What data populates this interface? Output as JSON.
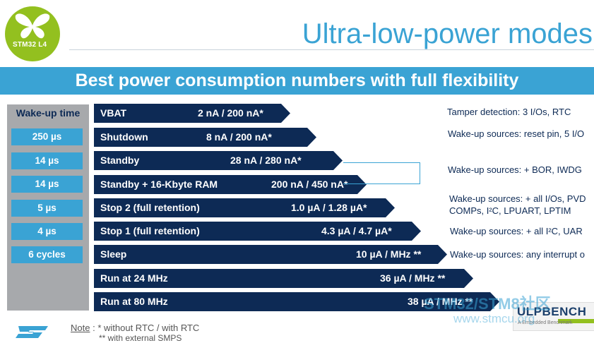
{
  "logo": {
    "text": "STM32 L4"
  },
  "title": "Ultra-low-power modes",
  "banner": "Best power consumption numbers with full flexibility",
  "wakeup": {
    "header": "Wake-up time",
    "cells": [
      "250 µs",
      "14 µs",
      "14 µs",
      "5 µs",
      "4 µs",
      "6 cycles"
    ]
  },
  "modes": [
    {
      "label": "VBAT",
      "value": "2 nA / 200 nA*"
    },
    {
      "label": "Shutdown",
      "value": "8 nA / 200 nA*"
    },
    {
      "label": "Standby",
      "value": "28 nA / 280 nA*"
    },
    {
      "label": "Standby + 16-Kbyte RAM",
      "value": "200 nA / 450 nA*"
    },
    {
      "label": "Stop 2 (full retention)",
      "value": "1.0 µA / 1.28 µA*"
    },
    {
      "label": "Stop 1 (full retention)",
      "value": "4.3 µA / 4.7 µA*"
    },
    {
      "label": "Sleep",
      "value": "10 µA / MHz **"
    },
    {
      "label": "Run at 24 MHz",
      "value": "36 µA / MHz **"
    },
    {
      "label": "Run at 80 MHz",
      "value": "38 µA / MHz **"
    }
  ],
  "descriptions": {
    "vbat": "Tamper detection: 3 I/Os, RTC",
    "shutdown": "Wake-up sources: reset pin, 5 I/O",
    "standby": "Wake-up sources: + BOR, IWDG",
    "stop2_line1": "Wake-up sources: + all I/Os, PVD",
    "stop2_line2": "COMPs, I²C, LPUART, LPTIM",
    "stop1": "Wake-up sources: + all I²C, UAR",
    "sleep": "Wake-up sources: any interrupt o"
  },
  "note": {
    "label": "Note",
    "line1": ": * without RTC / with RTC",
    "line2": "** with external SMPS"
  },
  "ulpbench": {
    "title": "ULPBENCH",
    "subtitle": "A Embedded Benchmark"
  },
  "watermark": {
    "line1": "STM32/STM8社区",
    "line2": "www.stmcu.org"
  },
  "colors": {
    "accent": "#3aa3d4",
    "navy": "#0d2a55",
    "green": "#93c01f",
    "gray": "#a7a9ac"
  }
}
